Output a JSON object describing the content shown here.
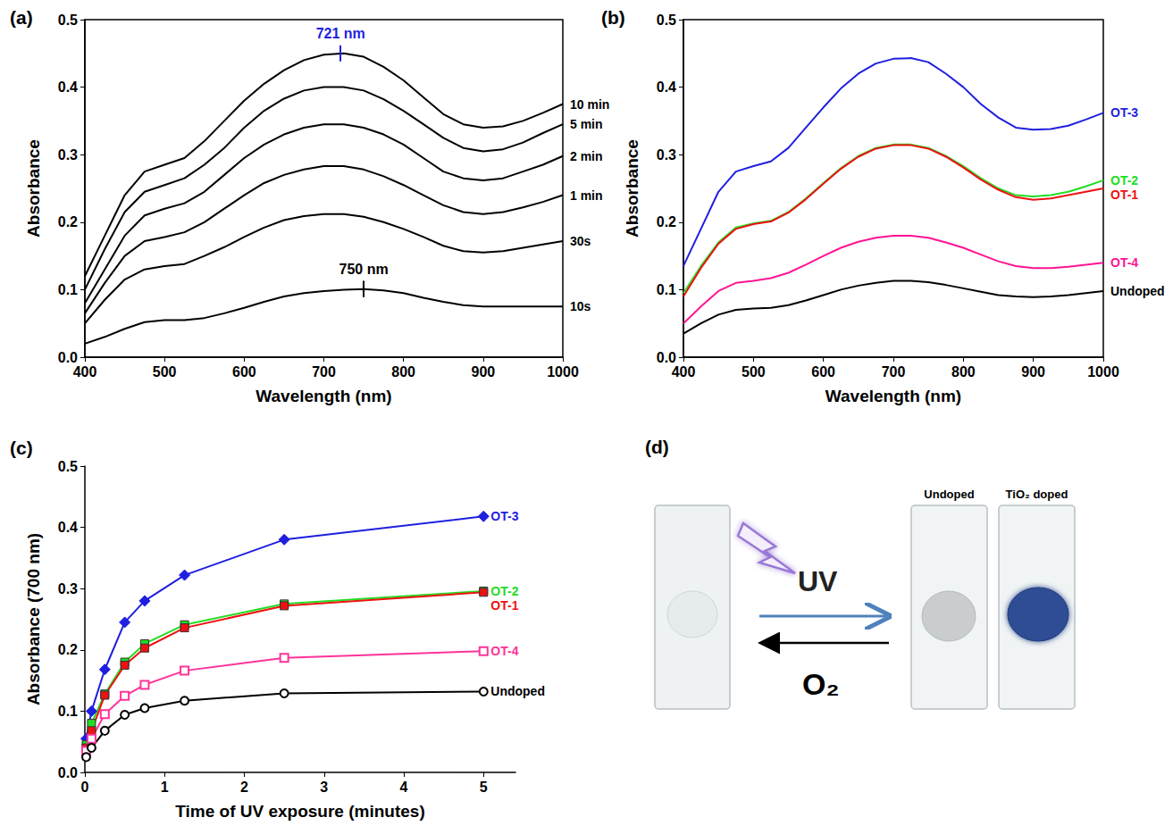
{
  "chart_data": [
    {
      "type": "line",
      "title": "(a)",
      "x_label": "Wavelength (nm)",
      "y_label": "Absorbance",
      "x": [
        400,
        425,
        450,
        475,
        500,
        525,
        550,
        575,
        600,
        625,
        650,
        675,
        700,
        725,
        750,
        775,
        800,
        825,
        850,
        875,
        900,
        925,
        950,
        975,
        1000
      ],
      "xlim": [
        400,
        1000
      ],
      "xticks": [
        400,
        500,
        600,
        700,
        800,
        900,
        1000
      ],
      "ylim": [
        0,
        0.5
      ],
      "yticks": [
        {
          "value": 0,
          "label": "0.0"
        },
        0.1,
        0.2,
        0.3,
        0.4,
        0.5
      ],
      "grid": false,
      "marker": "none",
      "series": [
        {
          "name": "10 min",
          "color": "#000000",
          "values": [
            0.12,
            0.18,
            0.24,
            0.275,
            0.285,
            0.295,
            0.32,
            0.35,
            0.38,
            0.405,
            0.425,
            0.44,
            0.448,
            0.45,
            0.445,
            0.43,
            0.41,
            0.385,
            0.36,
            0.345,
            0.34,
            0.342,
            0.35,
            0.362,
            0.375
          ]
        },
        {
          "name": "5 min",
          "color": "#000000",
          "values": [
            0.1,
            0.16,
            0.215,
            0.245,
            0.255,
            0.265,
            0.285,
            0.31,
            0.34,
            0.365,
            0.383,
            0.395,
            0.4,
            0.4,
            0.395,
            0.382,
            0.365,
            0.345,
            0.325,
            0.31,
            0.305,
            0.308,
            0.318,
            0.332,
            0.345
          ]
        },
        {
          "name": "2 min",
          "color": "#000000",
          "values": [
            0.08,
            0.13,
            0.18,
            0.21,
            0.22,
            0.228,
            0.245,
            0.27,
            0.295,
            0.315,
            0.33,
            0.34,
            0.345,
            0.345,
            0.34,
            0.33,
            0.315,
            0.295,
            0.275,
            0.265,
            0.262,
            0.265,
            0.275,
            0.285,
            0.298
          ]
        },
        {
          "name": "1 min",
          "color": "#000000",
          "values": [
            0.065,
            0.11,
            0.15,
            0.172,
            0.178,
            0.185,
            0.2,
            0.22,
            0.24,
            0.258,
            0.27,
            0.278,
            0.283,
            0.283,
            0.278,
            0.268,
            0.255,
            0.24,
            0.225,
            0.215,
            0.212,
            0.215,
            0.222,
            0.23,
            0.24
          ]
        },
        {
          "name": "30s",
          "color": "#000000",
          "values": [
            0.05,
            0.085,
            0.115,
            0.13,
            0.135,
            0.138,
            0.15,
            0.163,
            0.178,
            0.192,
            0.203,
            0.209,
            0.212,
            0.212,
            0.208,
            0.2,
            0.19,
            0.178,
            0.165,
            0.157,
            0.155,
            0.157,
            0.162,
            0.167,
            0.172
          ]
        },
        {
          "name": "10s",
          "color": "#000000",
          "values": [
            0.02,
            0.03,
            0.042,
            0.052,
            0.055,
            0.055,
            0.058,
            0.065,
            0.073,
            0.082,
            0.09,
            0.095,
            0.098,
            0.1,
            0.101,
            0.099,
            0.095,
            0.088,
            0.082,
            0.077,
            0.075,
            0.075,
            0.075,
            0.075,
            0.075
          ]
        }
      ],
      "annotations": [
        {
          "text": "721 nm",
          "x": 721,
          "y": 0.45,
          "color": "#1f1fe0"
        },
        {
          "text": "750 nm",
          "x": 750,
          "y": 0.101,
          "color": "#000000"
        }
      ]
    },
    {
      "type": "line",
      "title": "(b)",
      "x_label": "Wavelength (nm)",
      "y_label": "Absorbance",
      "x": [
        400,
        425,
        450,
        475,
        500,
        525,
        550,
        575,
        600,
        625,
        650,
        675,
        700,
        725,
        750,
        775,
        800,
        825,
        850,
        875,
        900,
        925,
        950,
        975,
        1000
      ],
      "xlim": [
        400,
        1000
      ],
      "xticks": [
        400,
        500,
        600,
        700,
        800,
        900,
        1000
      ],
      "ylim": [
        0,
        0.5
      ],
      "yticks": [
        {
          "value": 0,
          "label": "0.0"
        },
        0.1,
        0.2,
        0.3,
        0.4,
        0.5
      ],
      "grid": false,
      "marker": "none",
      "series": [
        {
          "name": "OT-3",
          "color": "#1f1fe0",
          "values": [
            0.135,
            0.19,
            0.245,
            0.275,
            0.283,
            0.29,
            0.31,
            0.34,
            0.37,
            0.398,
            0.42,
            0.435,
            0.442,
            0.443,
            0.437,
            0.42,
            0.4,
            0.375,
            0.355,
            0.34,
            0.337,
            0.338,
            0.343,
            0.352,
            0.362
          ]
        },
        {
          "name": "OT-2",
          "color": "#22dd22",
          "values": [
            0.095,
            0.135,
            0.17,
            0.192,
            0.198,
            0.202,
            0.215,
            0.235,
            0.258,
            0.28,
            0.298,
            0.31,
            0.315,
            0.315,
            0.31,
            0.298,
            0.283,
            0.265,
            0.25,
            0.24,
            0.238,
            0.24,
            0.245,
            0.253,
            0.262
          ]
        },
        {
          "name": "OT-1",
          "color": "#ee1111",
          "values": [
            0.09,
            0.132,
            0.168,
            0.19,
            0.197,
            0.201,
            0.214,
            0.234,
            0.257,
            0.279,
            0.297,
            0.309,
            0.314,
            0.314,
            0.309,
            0.297,
            0.281,
            0.263,
            0.248,
            0.237,
            0.233,
            0.235,
            0.24,
            0.245,
            0.25
          ]
        },
        {
          "name": "OT-4",
          "color": "#ff1493",
          "values": [
            0.05,
            0.075,
            0.098,
            0.11,
            0.113,
            0.117,
            0.125,
            0.137,
            0.15,
            0.162,
            0.171,
            0.177,
            0.18,
            0.18,
            0.177,
            0.17,
            0.162,
            0.152,
            0.142,
            0.135,
            0.132,
            0.132,
            0.134,
            0.137,
            0.14
          ]
        },
        {
          "name": "Undoped",
          "color": "#000000",
          "values": [
            0.035,
            0.05,
            0.063,
            0.07,
            0.072,
            0.073,
            0.077,
            0.084,
            0.092,
            0.1,
            0.106,
            0.11,
            0.113,
            0.113,
            0.111,
            0.107,
            0.102,
            0.097,
            0.092,
            0.09,
            0.089,
            0.09,
            0.092,
            0.095,
            0.098
          ]
        }
      ]
    },
    {
      "type": "line",
      "title": "(c)",
      "x_label": "Time of UV exposure (minutes)",
      "y_label": "Absorbance (700 nm)",
      "x": [
        0.0167,
        0.0833,
        0.25,
        0.5,
        0.75,
        1.25,
        2.5,
        5
      ],
      "xlim": [
        0,
        5.4
      ],
      "xticks": [
        0,
        1,
        2,
        3,
        4,
        5
      ],
      "ylim": [
        0,
        0.5
      ],
      "yticks": [
        {
          "value": 0,
          "label": "0.0"
        },
        0.1,
        0.2,
        0.3,
        0.4,
        0.5
      ],
      "grid": false,
      "series": [
        {
          "name": "OT-3",
          "color": "#1f1fe0",
          "marker": "diamond",
          "values": [
            0.055,
            0.1,
            0.168,
            0.245,
            0.28,
            0.322,
            0.38,
            0.418
          ]
        },
        {
          "name": "OT-2",
          "color": "#22dd22",
          "marker": "square",
          "values": [
            0.045,
            0.08,
            0.128,
            0.18,
            0.21,
            0.241,
            0.275,
            0.296
          ]
        },
        {
          "name": "OT-1",
          "color": "#ee1111",
          "marker": "square",
          "values": [
            0.04,
            0.068,
            0.126,
            0.175,
            0.203,
            0.236,
            0.272,
            0.294
          ]
        },
        {
          "name": "OT-4",
          "color": "#ff3399",
          "marker": "open square",
          "values": [
            0.035,
            0.055,
            0.095,
            0.125,
            0.143,
            0.166,
            0.187,
            0.198
          ]
        },
        {
          "name": "Undoped",
          "color": "#000000",
          "marker": "open circle",
          "values": [
            0.025,
            0.04,
            0.068,
            0.094,
            0.105,
            0.117,
            0.129,
            0.132
          ]
        }
      ]
    }
  ],
  "diagram": {
    "title": "(d)",
    "forward_arrow": {
      "label": "UV"
    },
    "back_arrow": {
      "label": "O₂"
    },
    "slides": [
      {
        "label": "Undoped"
      },
      {
        "label": "TiO₂ doped"
      }
    ]
  }
}
